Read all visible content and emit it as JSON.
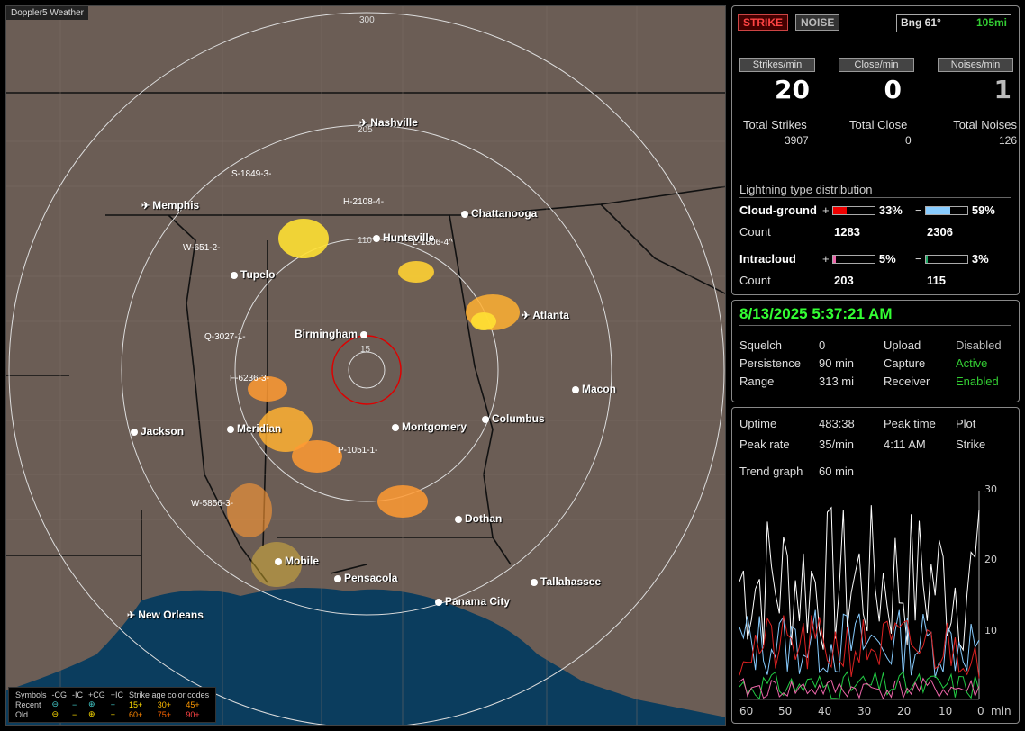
{
  "map": {
    "title": "Doppler5 Weather",
    "ring_labels": [
      "300",
      "205",
      "110",
      "15"
    ],
    "cities": [
      {
        "name": "Nashville",
        "airport": true
      },
      {
        "name": "Memphis",
        "airport": true
      },
      {
        "name": "Chattanooga",
        "airport": false
      },
      {
        "name": "Huntsville",
        "airport": false
      },
      {
        "name": "Tupelo",
        "airport": false
      },
      {
        "name": "Birmingham",
        "airport": false
      },
      {
        "name": "Atlanta",
        "airport": true
      },
      {
        "name": "Macon",
        "airport": false
      },
      {
        "name": "Jackson",
        "airport": false
      },
      {
        "name": "Meridian",
        "airport": false
      },
      {
        "name": "Montgomery",
        "airport": false
      },
      {
        "name": "Columbus",
        "airport": false
      },
      {
        "name": "Dothan",
        "airport": false
      },
      {
        "name": "Mobile",
        "airport": false
      },
      {
        "name": "Pensacola",
        "airport": false
      },
      {
        "name": "Tallahassee",
        "airport": false
      },
      {
        "name": "Panama City",
        "airport": false
      },
      {
        "name": "New Orleans",
        "airport": true
      }
    ],
    "storms": [
      "S-1849-3-",
      "H-2108-4-",
      "W-651-2-",
      "L-1806-4^",
      "Q-3027-1-",
      "F-6236-3-",
      "P-1051-1-",
      "W-5856-3-"
    ]
  },
  "legend": {
    "symbols": "Symbols",
    "cg_neg": "-CG",
    "ic_neg": "-IC",
    "cg_pos": "+CG",
    "ic_pos": "+IC",
    "age_title": "Strike age color codes",
    "recent": "Recent",
    "old": "Old",
    "ages_recent": [
      "15+",
      "30+",
      "45+"
    ],
    "ages_old": [
      "60+",
      "75+",
      "90+"
    ]
  },
  "top_panel": {
    "strike_btn": "STRIKE",
    "noise_btn": "NOISE",
    "bearing": "Bng 61°",
    "distance": "105mi",
    "strikes_min_label": "Strikes/min",
    "strikes_min": "20",
    "close_min_label": "Close/min",
    "close_min": "0",
    "noises_min_label": "Noises/min",
    "noises_min": "1",
    "total_strikes_label": "Total Strikes",
    "total_strikes": "3907",
    "total_close_label": "Total Close",
    "total_close": "0",
    "total_noises_label": "Total Noises",
    "total_noises": "126",
    "dist_title": "Lightning type distribution",
    "cg_label": "Cloud-ground",
    "cg_pos_pct": "33%",
    "cg_neg_pct": "59%",
    "count_label": "Count",
    "cg_pos_count": "1283",
    "cg_neg_count": "2306",
    "ic_label": "Intracloud",
    "ic_pos_pct": "5%",
    "ic_neg_pct": "3%",
    "ic_pos_count": "203",
    "ic_neg_count": "115",
    "plus": "+",
    "minus": "−",
    "bar_fracs": {
      "cg_pos": 0.33,
      "cg_neg": 0.59,
      "ic_pos": 0.05,
      "ic_neg": 0.03
    }
  },
  "status_panel": {
    "datetime": "8/13/2025 5:37:21 AM",
    "squelch_label": "Squelch",
    "squelch": "0",
    "persistence_label": "Persistence",
    "persistence": "90 min",
    "range_label": "Range",
    "range": "313 mi",
    "upload_label": "Upload",
    "upload": "Disabled",
    "capture_label": "Capture",
    "capture": "Active",
    "receiver_label": "Receiver",
    "receiver": "Enabled"
  },
  "trend_panel": {
    "uptime_label": "Uptime",
    "uptime": "483:38",
    "peak_time_label": "Peak time",
    "peak_time": "4:11 AM",
    "plot_label": "Plot",
    "plot": "Strike",
    "peak_rate_label": "Peak rate",
    "peak_rate": "35/min",
    "trend_label": "Trend graph",
    "trend": "60 min",
    "x_ticks": [
      "60",
      "50",
      "40",
      "30",
      "20",
      "10",
      "0",
      "min"
    ],
    "y_ticks": [
      "30",
      "20",
      "10"
    ]
  },
  "colors": {
    "strike_red": "#f44",
    "green": "#3c3",
    "cg_pos_bar": "#e00",
    "cg_neg_bar": "#8cf",
    "ic_pos_bar": "#e6a",
    "ic_neg_bar": "#2a6"
  }
}
